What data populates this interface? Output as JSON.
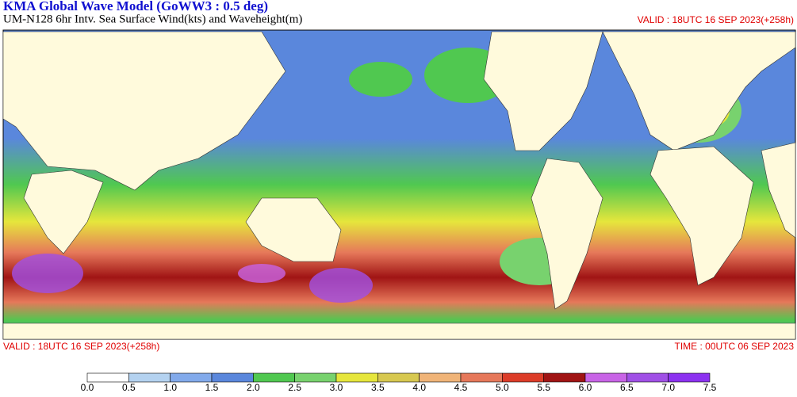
{
  "header": {
    "title": "KMA  Global Wave Model (GoWW3 : 0.5 deg)",
    "subtitle": "UM-N128  6hr Intv. Sea Surface Wind(kts) and Waveheight(m)",
    "valid_top": "VALID : 18UTC 16 SEP 2023(+258h)"
  },
  "footer": {
    "valid": "VALID : 18UTC 16 SEP 2023(+258h)",
    "time": "TIME : 00UTC 06 SEP 2023"
  },
  "colorbar": {
    "colors": [
      "#ffffff",
      "#b4d2f0",
      "#82aaeb",
      "#5a87dc",
      "#50c850",
      "#78d26e",
      "#e6e63c",
      "#d7c850",
      "#f0b478",
      "#e6785a",
      "#dc3c28",
      "#a01414",
      "#c864e6",
      "#a050e6",
      "#8c32f0"
    ],
    "ticks": [
      {
        "value": 0,
        "label": "0.0"
      },
      0.5,
      {
        "value": 1,
        "label": "1.0"
      },
      1.5,
      {
        "value": 2,
        "label": "2.0"
      },
      2.5,
      {
        "value": 3,
        "label": "3.0"
      },
      3.5,
      {
        "value": 4,
        "label": "4.0"
      },
      4.5,
      {
        "value": 5,
        "label": "5.0"
      },
      5.5,
      {
        "value": 6,
        "label": "6.0"
      },
      6.5,
      {
        "value": 7,
        "label": "7.0"
      },
      7.5
    ]
  }
}
